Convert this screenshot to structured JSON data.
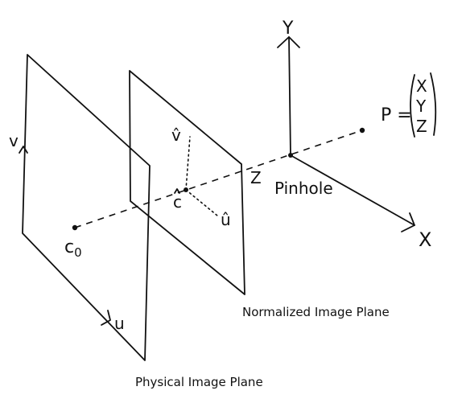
{
  "labels": {
    "v_axis": "v",
    "u_axis": "u",
    "camera_center": "c",
    "camera_center_sub": "0",
    "principal_point": "c",
    "v_hat": "v̂",
    "u_hat": "û",
    "y_axis": "Y",
    "x_axis": "X",
    "z_axis": "Z",
    "pinhole": "Pinhole",
    "point_p": "P =",
    "p_x": "X",
    "p_y": "Y",
    "p_z": "Z"
  },
  "captions": {
    "normalized": "Normalized Image Plane",
    "physical": "Physical Image Plane"
  }
}
